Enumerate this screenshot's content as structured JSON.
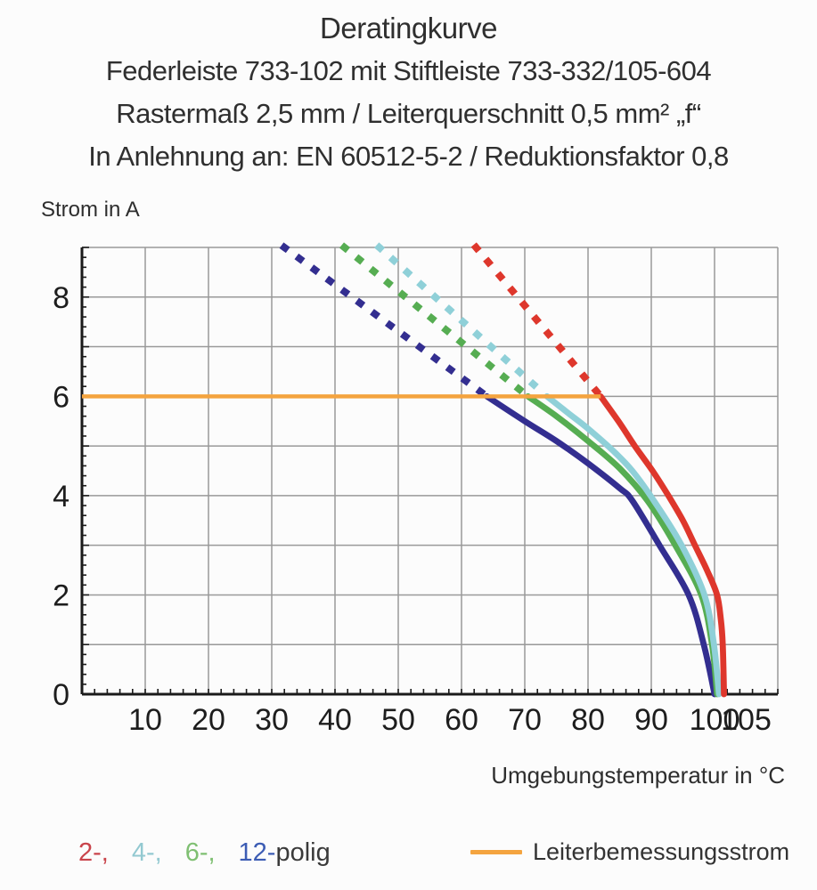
{
  "title": {
    "line1": "Deratingkurve",
    "line2": "Federleiste 733-102 mit Stiftleiste 733-332/105-604",
    "line3": "Rastermaß 2,5 mm / Leiterquerschnitt 0,5 mm² „f“",
    "line4": "In Anlehnung an: EN 60512-5-2 / Reduktionsfaktor 0,8"
  },
  "axis": {
    "y_title": "Strom in A",
    "x_title": "Umgebungstemperatur in °C"
  },
  "chart_data": {
    "type": "line",
    "title": "Deratingkurve",
    "xlabel": "Umgebungstemperatur in °C",
    "ylabel": "Strom in A",
    "xlim": [
      0,
      110
    ],
    "ylim": [
      0,
      9
    ],
    "x_ticks": [
      10,
      20,
      30,
      40,
      50,
      60,
      70,
      80,
      90,
      100,
      105
    ],
    "y_ticks": [
      0,
      2,
      4,
      6,
      8
    ],
    "x_minor_step": 2,
    "y_minor_step": 0.2,
    "grid": {
      "x_step": 10,
      "y_step": 1,
      "color": "#999999",
      "on": true
    },
    "axis_color": "#1a1a1a",
    "tick_label_color": "#1d1d1d",
    "rated_current_line": {
      "label": "Leiterbemessungsstrom",
      "color": "#f4a43f",
      "y": 6,
      "x_start": 0,
      "x_end": 82
    },
    "series": [
      {
        "name": "12-polig",
        "color": "#332e90",
        "dashed": [
          [
            32,
            9
          ],
          [
            64,
            6
          ]
        ],
        "solid": [
          [
            64,
            6
          ],
          [
            70,
            5.5
          ],
          [
            75,
            5.1
          ],
          [
            80,
            4.65
          ],
          [
            85,
            4.15
          ],
          [
            87,
            3.9
          ],
          [
            91.3,
            3
          ],
          [
            95.9,
            2
          ],
          [
            98.3,
            1
          ],
          [
            100,
            0
          ]
        ]
      },
      {
        "name": "6-polig",
        "color": "#56ad52",
        "dashed": [
          [
            41.5,
            9
          ],
          [
            70.5,
            6
          ]
        ],
        "solid": [
          [
            70.5,
            6
          ],
          [
            75,
            5.6
          ],
          [
            80,
            5.1
          ],
          [
            85,
            4.55
          ],
          [
            89.4,
            3.9
          ],
          [
            93.8,
            3
          ],
          [
            97.9,
            2
          ],
          [
            99.6,
            1
          ],
          [
            100.4,
            0
          ]
        ]
      },
      {
        "name": "4-polig",
        "color": "#8fd0d8",
        "dashed": [
          [
            47,
            9
          ],
          [
            73.5,
            6
          ]
        ],
        "solid": [
          [
            73.5,
            6
          ],
          [
            77,
            5.65
          ],
          [
            80,
            5.35
          ],
          [
            84,
            4.9
          ],
          [
            87,
            4.5
          ],
          [
            90.4,
            3.9
          ],
          [
            94.8,
            3
          ],
          [
            98.4,
            2
          ],
          [
            99.9,
            1
          ],
          [
            100.7,
            0
          ]
        ]
      },
      {
        "name": "2-polig",
        "color": "#de372c",
        "dashed": [
          [
            62.3,
            9
          ],
          [
            82,
            6
          ]
        ],
        "solid": [
          [
            82,
            6
          ],
          [
            84.8,
            5.5
          ],
          [
            87.4,
            5
          ],
          [
            90.2,
            4.5
          ],
          [
            92.7,
            4
          ],
          [
            95,
            3.5
          ],
          [
            96.9,
            3
          ],
          [
            98.8,
            2.5
          ],
          [
            100.4,
            2
          ],
          [
            101,
            1.5
          ],
          [
            101.3,
            1
          ],
          [
            101.5,
            0
          ]
        ]
      }
    ]
  },
  "legend": {
    "pole_items": [
      {
        "label": "2-,",
        "color": "#c9444b"
      },
      {
        "label": "4-,",
        "color": "#93c9d1"
      },
      {
        "label": "6-,",
        "color": "#7fbf72"
      },
      {
        "label": "12-",
        "color": "#3c5cb4"
      },
      {
        "label": "polig",
        "color": "#3a3a3a"
      }
    ],
    "rated_current_label": "Leiterbemessungsstrom",
    "rated_current_color": "#f4a43f"
  }
}
